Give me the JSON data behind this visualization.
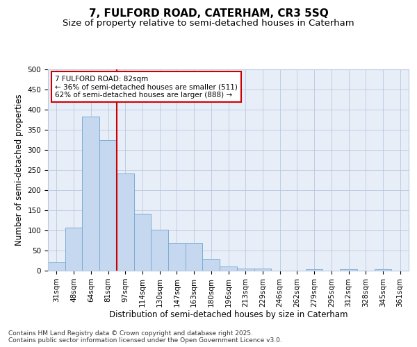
{
  "title": "7, FULFORD ROAD, CATERHAM, CR3 5SQ",
  "subtitle": "Size of property relative to semi-detached houses in Caterham",
  "xlabel": "Distribution of semi-detached houses by size in Caterham",
  "ylabel": "Number of semi-detached properties",
  "categories": [
    "31sqm",
    "48sqm",
    "64sqm",
    "81sqm",
    "97sqm",
    "114sqm",
    "130sqm",
    "147sqm",
    "163sqm",
    "180sqm",
    "196sqm",
    "213sqm",
    "229sqm",
    "246sqm",
    "262sqm",
    "279sqm",
    "295sqm",
    "312sqm",
    "328sqm",
    "345sqm",
    "361sqm"
  ],
  "values": [
    20,
    107,
    383,
    325,
    241,
    141,
    102,
    69,
    69,
    30,
    10,
    6,
    6,
    0,
    0,
    3,
    0,
    4,
    0,
    4,
    0
  ],
  "bar_color": "#c5d8f0",
  "bar_edge_color": "#7aadd4",
  "vline_color": "#cc0000",
  "annotation_text": "7 FULFORD ROAD: 82sqm\n← 36% of semi-detached houses are smaller (511)\n62% of semi-detached houses are larger (888) →",
  "annotation_box_color": "#ffffff",
  "annotation_box_edge_color": "#cc0000",
  "ylim": [
    0,
    500
  ],
  "yticks": [
    0,
    50,
    100,
    150,
    200,
    250,
    300,
    350,
    400,
    450,
    500
  ],
  "footer": "Contains HM Land Registry data © Crown copyright and database right 2025.\nContains public sector information licensed under the Open Government Licence v3.0.",
  "background_color": "#e8eef8",
  "grid_color": "#b8c8e0",
  "title_fontsize": 11,
  "subtitle_fontsize": 9.5,
  "axis_label_fontsize": 8.5,
  "tick_fontsize": 7.5,
  "annotation_fontsize": 7.5,
  "footer_fontsize": 6.5
}
